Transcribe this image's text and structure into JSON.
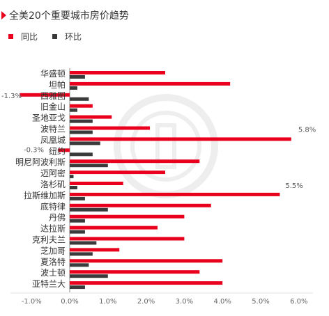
{
  "header": {
    "title": "全美20个重要城市房价趋势"
  },
  "colors": {
    "accent": "#e8001c",
    "yoy": "#e8001c",
    "mom": "#3a3a3a",
    "watermark": "#ececec"
  },
  "chart_data": {
    "type": "bar",
    "orientation": "horizontal",
    "title": "全美20个重要城市房价趋势",
    "categories": [
      "华盛顿",
      "坦帕",
      "西雅图",
      "旧金山",
      "圣地亚戈",
      "波特兰",
      "凤凰城",
      "纽约",
      "明尼阿波利斯",
      "迈阿密",
      "洛杉矶",
      "拉斯维加斯",
      "底特律",
      "丹佛",
      "达拉斯",
      "克利夫兰",
      "芝加哥",
      "夏洛特",
      "波士顿",
      "亚特兰大"
    ],
    "series": [
      {
        "name": "同比",
        "color": "#e8001c",
        "values": [
          2.5,
          4.2,
          -1.3,
          0.6,
          1.1,
          2.1,
          5.8,
          -0.3,
          3.4,
          2.5,
          1.4,
          5.5,
          3.7,
          3.0,
          2.3,
          3.0,
          1.3,
          4.0,
          3.4,
          4.0
        ]
      },
      {
        "name": "环比",
        "color": "#3a3a3a",
        "values": [
          0.4,
          0.2,
          0.5,
          0.2,
          0.6,
          0.6,
          0.8,
          0.6,
          1.0,
          0.1,
          0.2,
          0.4,
          1.0,
          0.4,
          0.4,
          0.7,
          0.6,
          0.5,
          1.0,
          0.4
        ]
      }
    ],
    "xlim": [
      -1.0,
      6.0
    ],
    "xticks": [
      "-1.0%",
      "0.0%",
      "1.0%",
      "2.0%",
      "3.0%",
      "4.0%",
      "5.0%",
      "6.0%"
    ],
    "xtick_values": [
      -1,
      0,
      1,
      2,
      3,
      4,
      5,
      6
    ],
    "data_labels": [
      {
        "category": "西雅图",
        "series": "同比",
        "text": "-1.3%"
      },
      {
        "category": "凤凰城",
        "series": "同比",
        "text": "5.8%"
      },
      {
        "category": "纽约",
        "series": "同比",
        "text": "-0.3%"
      },
      {
        "category": "拉斯维加斯",
        "series": "同比",
        "text": "5.5%"
      }
    ],
    "legend_position": "top-left",
    "grid": false
  }
}
